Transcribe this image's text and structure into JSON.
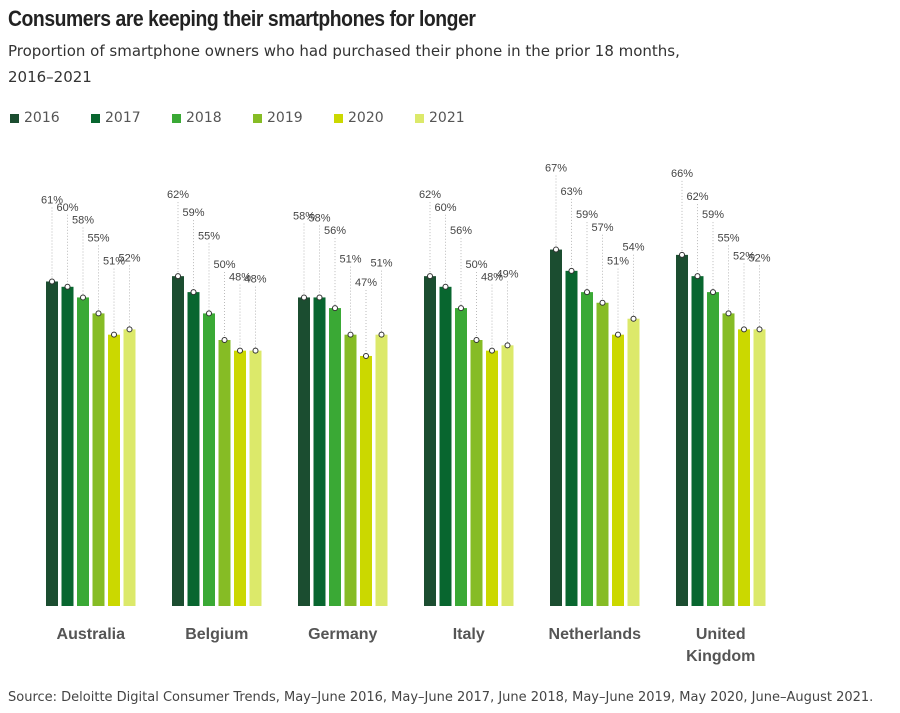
{
  "title": "Consumers are keeping their smartphones for longer",
  "subtitle": "Proportion of smartphone owners who had purchased their phone in the prior 18 months, 2016–2021",
  "source": "Source: Deloitte Digital Consumer Trends, May–June 2016, May–June 2017, June 2018, May–June 2019, May 2020, June–August 2021.",
  "chart_data": {
    "type": "bar",
    "categories": [
      "Australia",
      "Belgium",
      "Germany",
      "Italy",
      "Netherlands",
      "United Kingdom"
    ],
    "series": [
      {
        "name": "2016",
        "color": "#1b4d30",
        "values": [
          61,
          62,
          58,
          62,
          67,
          66
        ]
      },
      {
        "name": "2017",
        "color": "#08662f",
        "values": [
          60,
          59,
          58,
          60,
          63,
          62
        ]
      },
      {
        "name": "2018",
        "color": "#3aa935",
        "values": [
          58,
          55,
          56,
          56,
          59,
          59
        ]
      },
      {
        "name": "2019",
        "color": "#86bc25",
        "values": [
          55,
          50,
          51,
          50,
          57,
          55
        ]
      },
      {
        "name": "2020",
        "color": "#cbd800",
        "values": [
          51,
          48,
          47,
          48,
          51,
          52
        ]
      },
      {
        "name": "2021",
        "color": "#dce96a",
        "values": [
          52,
          48,
          51,
          49,
          54,
          52
        ]
      }
    ],
    "value_suffix": "%",
    "ylim": [
      0,
      100
    ],
    "grid": false,
    "legend": "top-left"
  }
}
